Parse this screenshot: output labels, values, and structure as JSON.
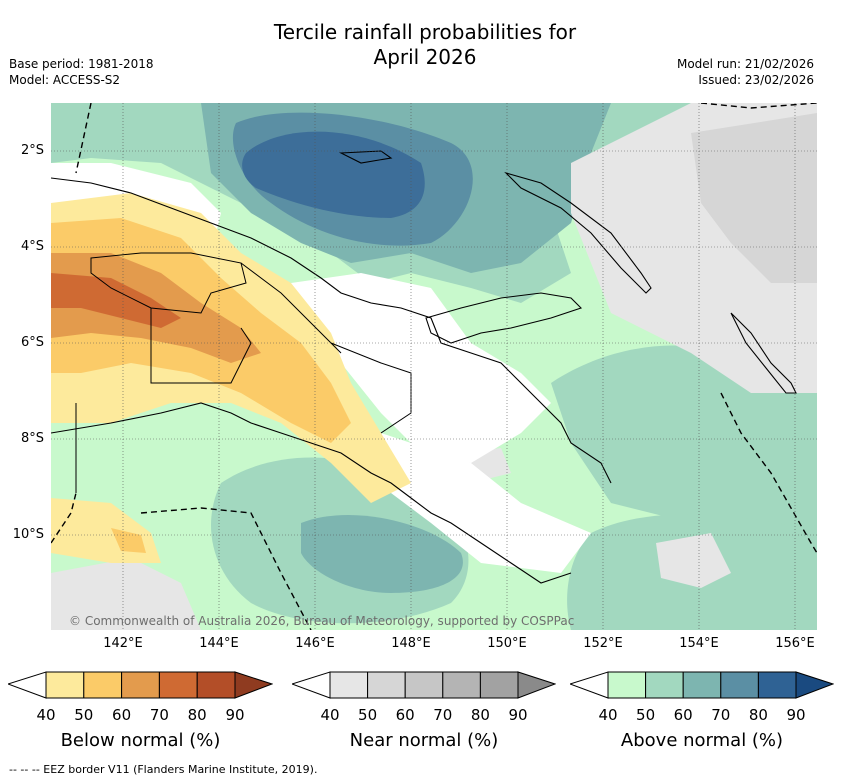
{
  "header": {
    "title_line1": "Tercile rainfall probabilities for",
    "title_line2": "April 2026",
    "base_period": "Base period: 1981-2018",
    "model": "Model: ACCESS-S2",
    "model_run": "Model run: 21/02/2026",
    "issued": "Issued: 23/02/2026"
  },
  "map": {
    "lat_labels": [
      "2°S",
      "4°S",
      "6°S",
      "8°S",
      "10°S"
    ],
    "lon_labels": [
      "142°E",
      "144°E",
      "146°E",
      "148°E",
      "150°E",
      "152°E",
      "154°E",
      "156°E"
    ],
    "credit": "© Commonwealth of Australia 2026, Bureau of Meteorology, supported by COSPPac"
  },
  "legends": [
    {
      "title": "Below normal (%)",
      "ticks": [
        "40",
        "50",
        "60",
        "70",
        "80",
        "90"
      ],
      "colors": [
        "#fdea9c",
        "#fbcb68",
        "#e39b4d",
        "#cf6a33",
        "#b34e28",
        "#8f3b20"
      ]
    },
    {
      "title": "Near normal (%)",
      "ticks": [
        "40",
        "50",
        "60",
        "70",
        "80",
        "90"
      ],
      "colors": [
        "#e6e6e6",
        "#d6d6d6",
        "#c6c6c6",
        "#b4b4b4",
        "#a2a2a2",
        "#8a8a8a"
      ]
    },
    {
      "title": "Above normal (%)",
      "ticks": [
        "40",
        "50",
        "60",
        "70",
        "80",
        "90"
      ],
      "colors": [
        "#c8f9cc",
        "#a2d8bf",
        "#7db5b0",
        "#5b8fa4",
        "#2f6294",
        "#1a4a80"
      ]
    }
  ],
  "footer": {
    "eez": "--  --  -- EEZ border V11 (Flanders Marine Institute, 2019)."
  }
}
